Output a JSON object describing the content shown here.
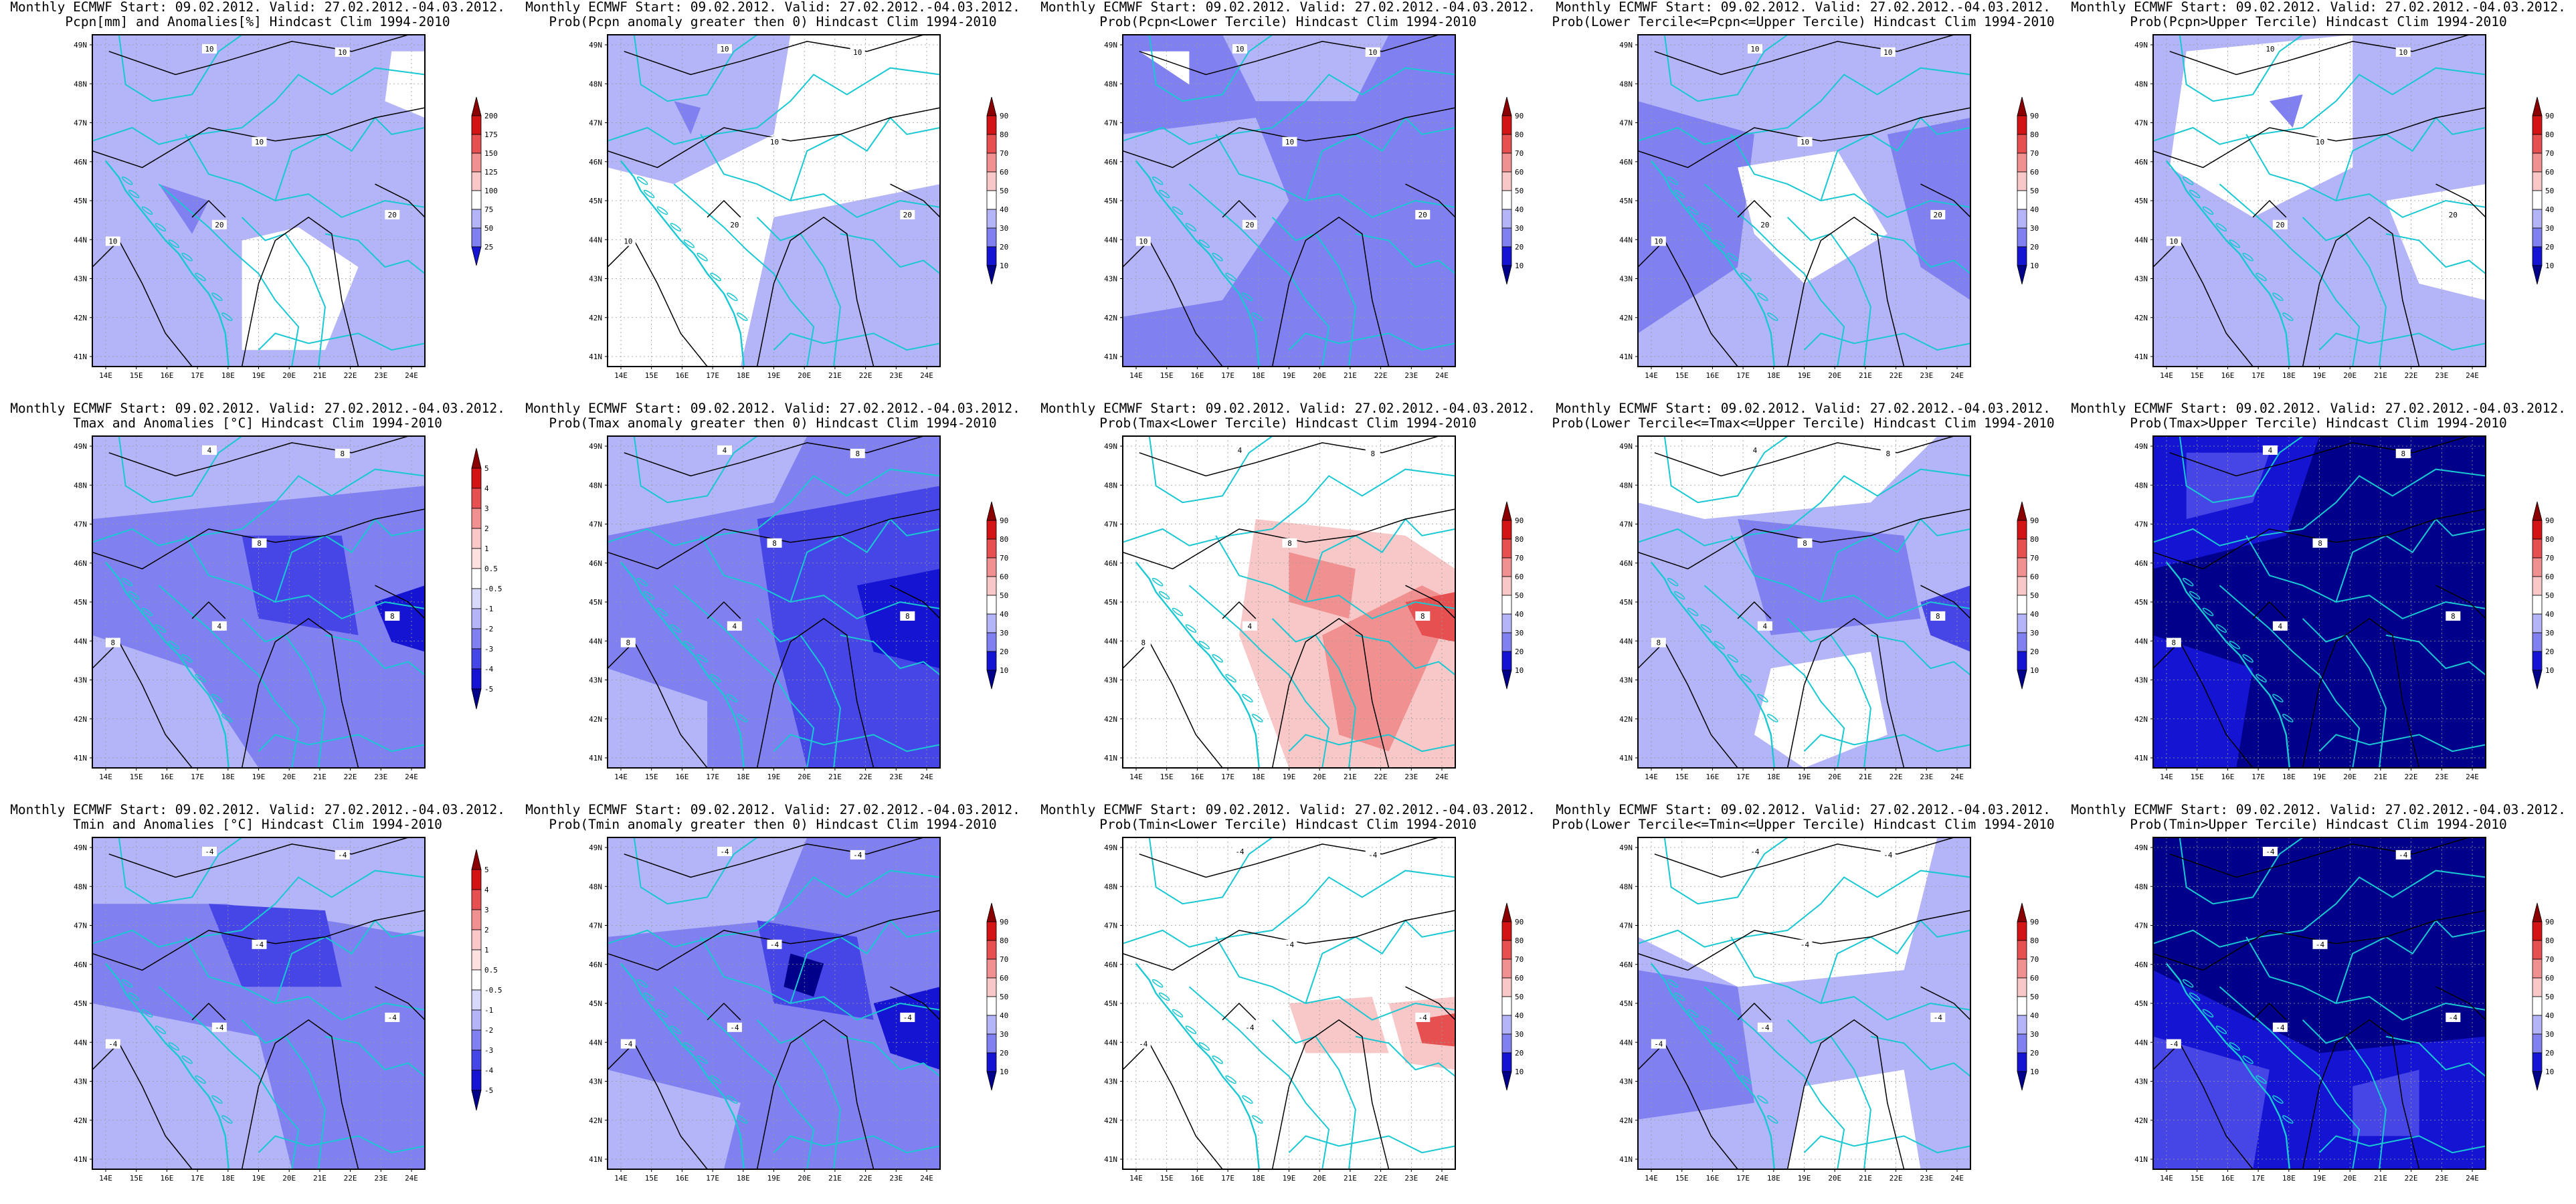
{
  "lat_labels": [
    "49N",
    "48N",
    "47N",
    "46N",
    "45N",
    "44N",
    "43N",
    "42N",
    "41N"
  ],
  "lon_labels": [
    "14E",
    "15E",
    "16E",
    "17E",
    "18E",
    "19E",
    "20E",
    "21E",
    "22E",
    "23E",
    "24E"
  ],
  "legends": {
    "anom_pcpn": [
      "200",
      "175",
      "150",
      "125",
      "100",
      "75",
      "50",
      "25"
    ],
    "anom_temp": [
      "5",
      "4",
      "3",
      "2",
      "1",
      "0.5",
      "-0.5",
      "-1",
      "-2",
      "-3",
      "-4",
      "-5"
    ],
    "prob": [
      "90",
      "80",
      "70",
      "60",
      "50",
      "40",
      "30",
      "20",
      "10"
    ]
  },
  "colors": {
    "land_border": "#19c8d2",
    "contour": "#000000",
    "blue_scale": [
      "#00008b",
      "#1414d2",
      "#4646e6",
      "#8080f0",
      "#b4b4f8",
      "#ffffff"
    ],
    "red_scale": [
      "#ffffff",
      "#f8c8c8",
      "#f09090",
      "#e65050",
      "#d21414",
      "#8b0000"
    ]
  },
  "panels": [
    {
      "id": "r1c1",
      "title1": "Monthly ECMWF Start: 09.02.2012. Valid: 27.02.2012.-04.03.2012.",
      "title2": "Pcpn[mm] and Anomalies[%] Hindcast Clim 1994-2010",
      "legend": "anom_pcpn",
      "contour_labels": [
        "10",
        "10",
        "10",
        "20",
        "10",
        "20"
      ]
    },
    {
      "id": "r1c2",
      "title1": "Monthly ECMWF Start: 09.02.2012. Valid: 27.02.2012.-04.03.2012.",
      "title2": "Prob(Pcpn anomaly greater then 0) Hindcast Clim 1994-2010",
      "legend": "prob",
      "contour_labels": [
        "10",
        "10",
        "10",
        "20",
        "10",
        "20"
      ]
    },
    {
      "id": "r1c3",
      "title1": "Monthly ECMWF Start: 09.02.2012. Valid: 27.02.2012.-04.03.2012.",
      "title2": "Prob(Pcpn<Lower Tercile) Hindcast Clim 1994-2010",
      "legend": "prob",
      "contour_labels": [
        "10",
        "10",
        "10",
        "20",
        "10",
        "20"
      ]
    },
    {
      "id": "r1c4",
      "title1": "Monthly ECMWF Start: 09.02.2012. Valid: 27.02.2012.-04.03.2012.",
      "title2": "Prob(Lower Tercile<=Pcpn<=Upper Tercile) Hindcast Clim 1994-2010",
      "legend": "prob",
      "contour_labels": [
        "10",
        "10",
        "10",
        "20",
        "10",
        "20"
      ]
    },
    {
      "id": "r1c5",
      "title1": "Monthly ECMWF Start: 09.02.2012. Valid: 27.02.2012.-04.03.2012.",
      "title2": "Prob(Pcpn>Upper Tercile) Hindcast Clim 1994-2010",
      "legend": "prob",
      "contour_labels": [
        "10",
        "10",
        "10",
        "20",
        "10",
        "20"
      ]
    },
    {
      "id": "r2c1",
      "title1": "Monthly ECMWF Start: 09.02.2012. Valid: 27.02.2012.-04.03.2012.",
      "title2": "Tmax and Anomalies [°C] Hindcast Clim 1994-2010",
      "legend": "anom_temp",
      "contour_labels": [
        "4",
        "8",
        "8",
        "4",
        "8",
        "8"
      ]
    },
    {
      "id": "r2c2",
      "title1": "Monthly ECMWF Start: 09.02.2012. Valid: 27.02.2012.-04.03.2012.",
      "title2": "Prob(Tmax anomaly greater then 0) Hindcast Clim 1994-2010",
      "legend": "prob",
      "contour_labels": [
        "4",
        "8",
        "8",
        "4",
        "8",
        "8"
      ]
    },
    {
      "id": "r2c3",
      "title1": "Monthly ECMWF Start: 09.02.2012. Valid: 27.02.2012.-04.03.2012.",
      "title2": "Prob(Tmax<Lower Tercile) Hindcast Clim 1994-2010",
      "legend": "prob",
      "contour_labels": [
        "4",
        "8",
        "8",
        "4",
        "8",
        "8"
      ]
    },
    {
      "id": "r2c4",
      "title1": "Monthly ECMWF Start: 09.02.2012. Valid: 27.02.2012.-04.03.2012.",
      "title2": "Prob(Lower Tercile<=Tmax<=Upper Tercile) Hindcast Clim 1994-2010",
      "legend": "prob",
      "contour_labels": [
        "4",
        "8",
        "8",
        "4",
        "8",
        "8"
      ]
    },
    {
      "id": "r2c5",
      "title1": "Monthly ECMWF Start: 09.02.2012. Valid: 27.02.2012.-04.03.2012.",
      "title2": "Prob(Tmax>Upper Tercile) Hindcast Clim 1994-2010",
      "legend": "prob",
      "contour_labels": [
        "4",
        "8",
        "8",
        "4",
        "8",
        "8"
      ]
    },
    {
      "id": "r3c1",
      "title1": "Monthly ECMWF Start: 09.02.2012. Valid: 27.02.2012.-04.03.2012.",
      "title2": "Tmin and Anomalies [°C] Hindcast Clim 1994-2010",
      "legend": "anom_temp",
      "contour_labels": [
        "-4",
        "-4",
        "-4",
        "-4",
        "-4",
        "-4"
      ]
    },
    {
      "id": "r3c2",
      "title1": "Monthly ECMWF Start: 09.02.2012. Valid: 27.02.2012.-04.03.2012.",
      "title2": "Prob(Tmin anomaly greater then 0) Hindcast Clim 1994-2010",
      "legend": "prob",
      "contour_labels": [
        "-4",
        "-4",
        "-4",
        "-4",
        "-4",
        "-4"
      ]
    },
    {
      "id": "r3c3",
      "title1": "Monthly ECMWF Start: 09.02.2012. Valid: 27.02.2012.-04.03.2012.",
      "title2": "Prob(Tmin<Lower Tercile) Hindcast Clim 1994-2010",
      "legend": "prob",
      "contour_labels": [
        "-4",
        "-4",
        "-4",
        "-4",
        "-4",
        "-4"
      ]
    },
    {
      "id": "r3c4",
      "title1": "Monthly ECMWF Start: 09.02.2012. Valid: 27.02.2012.-04.03.2012.",
      "title2": "Prob(Lower Tercile<=Tmin<=Upper Tercile) Hindcast Clim 1994-2010",
      "legend": "prob",
      "contour_labels": [
        "-4",
        "-4",
        "-4",
        "-4",
        "-4",
        "-4"
      ]
    },
    {
      "id": "r3c5",
      "title1": "Monthly ECMWF Start: 09.02.2012. Valid: 27.02.2012.-04.03.2012.",
      "title2": "Prob(Tmin>Upper Tercile) Hindcast Clim 1994-2010",
      "legend": "prob",
      "contour_labels": [
        "-4",
        "-4",
        "-4",
        "-4",
        "-4",
        "-4"
      ]
    }
  ]
}
